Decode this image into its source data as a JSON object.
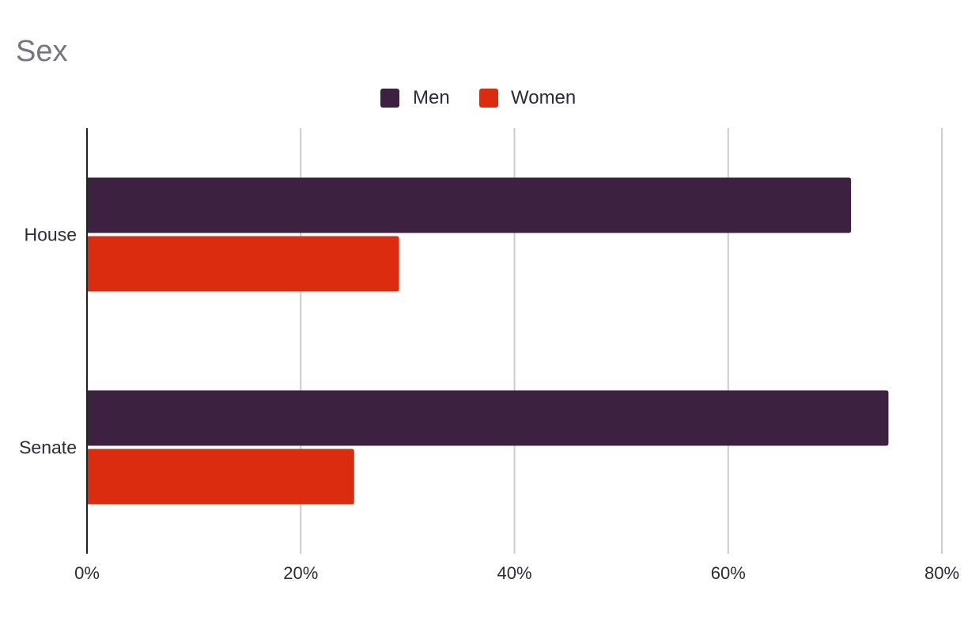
{
  "chart_data": {
    "type": "bar",
    "orientation": "horizontal",
    "title": "Sex",
    "categories": [
      "House",
      "Senate"
    ],
    "series": [
      {
        "name": "Men",
        "color": "#3d2140",
        "values": [
          71.5,
          75.0
        ]
      },
      {
        "name": "Women",
        "color": "#dc2c10",
        "values": [
          29.2,
          25.0
        ]
      }
    ],
    "xlim": [
      0,
      80
    ],
    "xticks": [
      0,
      20,
      40,
      60,
      80
    ],
    "tick_format": "{v}%",
    "legend_position": "top-center",
    "grid": true
  }
}
